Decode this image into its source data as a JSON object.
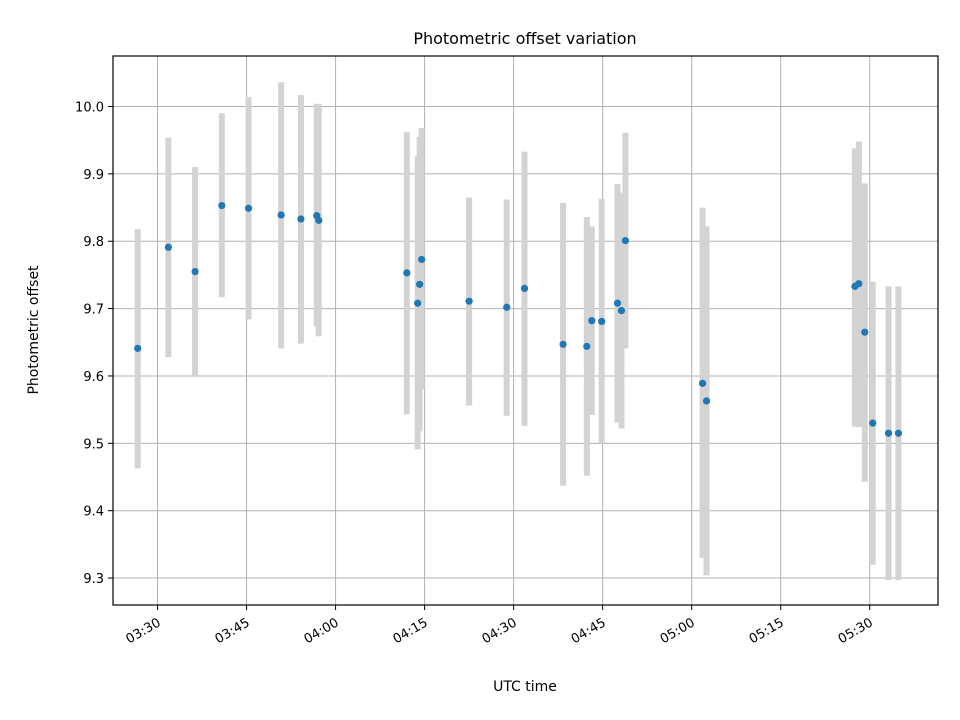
{
  "chart_data": {
    "type": "scatter",
    "title": "Photometric offset variation",
    "xlabel": "UTC time",
    "ylabel": "Photometric offset",
    "xlim": [
      "03:22:30",
      "05:41:30"
    ],
    "ylim": [
      9.26,
      10.075
    ],
    "grid": true,
    "x_ticks": [
      "03:30",
      "03:45",
      "04:00",
      "04:15",
      "04:30",
      "04:45",
      "05:00",
      "05:15",
      "05:30"
    ],
    "y_ticks": [
      "9.3",
      "9.4",
      "9.5",
      "9.6",
      "9.7",
      "9.8",
      "9.9",
      "10.0"
    ],
    "colors": {
      "point": "#1f77b4",
      "error_bar": "#d3d3d3",
      "grid": "#b0b0b0"
    },
    "points": [
      {
        "x": "03:26:40",
        "y": 9.641,
        "lo": 9.463,
        "hi": 9.818
      },
      {
        "x": "03:31:50",
        "y": 9.791,
        "lo": 9.628,
        "hi": 9.954
      },
      {
        "x": "03:36:20",
        "y": 9.755,
        "lo": 9.6,
        "hi": 9.91
      },
      {
        "x": "03:40:50",
        "y": 9.853,
        "lo": 9.717,
        "hi": 9.99
      },
      {
        "x": "03:45:20",
        "y": 9.849,
        "lo": 9.684,
        "hi": 10.014
      },
      {
        "x": "03:50:50",
        "y": 9.839,
        "lo": 9.641,
        "hi": 10.036
      },
      {
        "x": "03:54:10",
        "y": 9.833,
        "lo": 9.648,
        "hi": 10.017
      },
      {
        "x": "03:56:50",
        "y": 9.838,
        "lo": 9.673,
        "hi": 10.004
      },
      {
        "x": "03:57:10",
        "y": 9.831,
        "lo": 9.659,
        "hi": 10.004
      },
      {
        "x": "04:12:00",
        "y": 9.753,
        "lo": 9.543,
        "hi": 9.962
      },
      {
        "x": "04:13:50",
        "y": 9.708,
        "lo": 9.491,
        "hi": 9.926
      },
      {
        "x": "04:14:10",
        "y": 9.736,
        "lo": 9.518,
        "hi": 9.955
      },
      {
        "x": "04:14:30",
        "y": 9.773,
        "lo": 9.58,
        "hi": 9.968
      },
      {
        "x": "04:22:30",
        "y": 9.711,
        "lo": 9.556,
        "hi": 9.865
      },
      {
        "x": "04:28:50",
        "y": 9.702,
        "lo": 9.541,
        "hi": 9.862
      },
      {
        "x": "04:31:50",
        "y": 9.73,
        "lo": 9.526,
        "hi": 9.933
      },
      {
        "x": "04:38:20",
        "y": 9.647,
        "lo": 9.437,
        "hi": 9.857
      },
      {
        "x": "04:42:20",
        "y": 9.644,
        "lo": 9.452,
        "hi": 9.836
      },
      {
        "x": "04:43:10",
        "y": 9.682,
        "lo": 9.542,
        "hi": 9.822
      },
      {
        "x": "04:44:50",
        "y": 9.681,
        "lo": 9.5,
        "hi": 9.863
      },
      {
        "x": "04:47:30",
        "y": 9.708,
        "lo": 9.531,
        "hi": 9.885
      },
      {
        "x": "04:48:10",
        "y": 9.697,
        "lo": 9.522,
        "hi": 9.872
      },
      {
        "x": "04:48:50",
        "y": 9.801,
        "lo": 9.641,
        "hi": 9.961
      },
      {
        "x": "05:01:50",
        "y": 9.589,
        "lo": 9.33,
        "hi": 9.85
      },
      {
        "x": "05:02:30",
        "y": 9.563,
        "lo": 9.304,
        "hi": 9.822
      },
      {
        "x": "05:27:30",
        "y": 9.733,
        "lo": 9.525,
        "hi": 9.938
      },
      {
        "x": "05:28:10",
        "y": 9.737,
        "lo": 9.524,
        "hi": 9.948
      },
      {
        "x": "05:29:10",
        "y": 9.665,
        "lo": 9.443,
        "hi": 9.886
      },
      {
        "x": "05:30:30",
        "y": 9.53,
        "lo": 9.32,
        "hi": 9.74
      },
      {
        "x": "05:33:10",
        "y": 9.515,
        "lo": 9.297,
        "hi": 9.733
      },
      {
        "x": "05:34:50",
        "y": 9.515,
        "lo": 9.297,
        "hi": 9.733
      }
    ]
  }
}
